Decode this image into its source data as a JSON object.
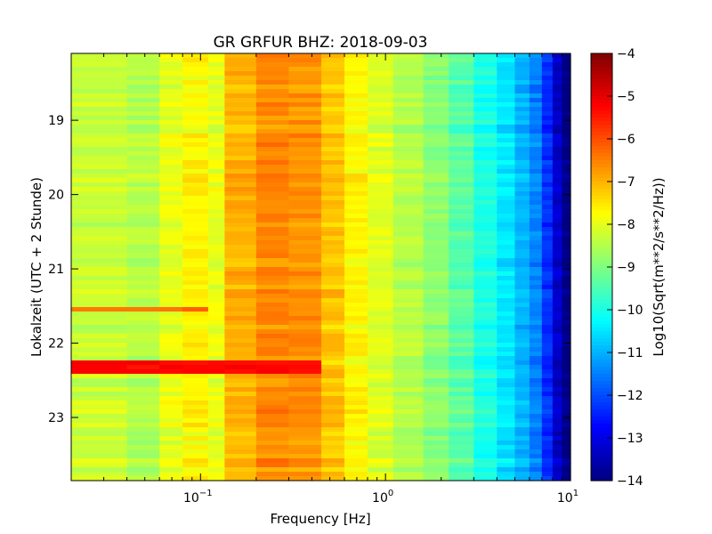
{
  "chart_data": {
    "type": "heatmap",
    "title": "GR GRFUR BHZ: 2018-09-03",
    "xlabel": "Frequency [Hz]",
    "ylabel": "Lokalzeit (UTC + 2 Stunde)",
    "x_scale": "log",
    "xlim": [
      0.02,
      10
    ],
    "x_ticks": [
      {
        "value": 0.1,
        "base": "10",
        "exp": "−1"
      },
      {
        "value": 1,
        "base": "10",
        "exp": "0"
      },
      {
        "value": 10,
        "base": "10",
        "exp": "1"
      }
    ],
    "ylim": [
      18.1,
      23.85
    ],
    "y_inverted": true,
    "y_ticks": [
      19,
      20,
      21,
      22,
      23
    ],
    "colorbar": {
      "label": "Log10(Sqrt(m**2/s**2/Hz))",
      "min": -14,
      "max": -4,
      "ticks": [
        -4,
        -5,
        -6,
        -7,
        -8,
        -9,
        -10,
        -11,
        -12,
        -13,
        -14
      ],
      "colormap": "jet"
    },
    "freq_bins": [
      0.02,
      0.04,
      0.06,
      0.08,
      0.11,
      0.135,
      0.2,
      0.3,
      0.45,
      0.6,
      0.8,
      1.1,
      1.6,
      2.2,
      3.0,
      4.0,
      5.0,
      6.0,
      7.0,
      8.0,
      9.0,
      10.0
    ],
    "base_spectrum": [
      -8.3,
      -8.5,
      -8.0,
      -7.7,
      -8.0,
      -7.0,
      -6.6,
      -6.7,
      -7.2,
      -7.7,
      -8.1,
      -8.5,
      -8.9,
      -9.4,
      -10.0,
      -10.5,
      -11.0,
      -11.5,
      -12.3,
      -13.3,
      -14.0
    ],
    "events": [
      {
        "time": 21.55,
        "width": 0.05,
        "max_freq": 0.1,
        "value": -6.3
      },
      {
        "time": 22.33,
        "width": 0.08,
        "max_freq": 0.5,
        "value": -5.3
      }
    ]
  }
}
